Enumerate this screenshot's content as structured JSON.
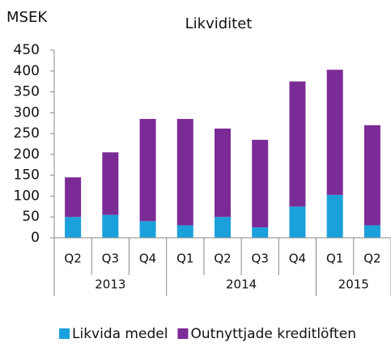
{
  "chart_data": {
    "type": "stacked_bar",
    "title": "Likviditet",
    "y_label": "MSEK",
    "groups": [
      {
        "label": "2013",
        "categories": [
          "Q2",
          "Q3",
          "Q4"
        ]
      },
      {
        "label": "2014",
        "categories": [
          "Q1",
          "Q2",
          "Q3",
          "Q4"
        ]
      },
      {
        "label": "2015",
        "categories": [
          "Q1",
          "Q2"
        ]
      }
    ],
    "series": [
      {
        "name": "Likvida medel",
        "color": "#1aa1db",
        "values": [
          50,
          55,
          40,
          30,
          50,
          25,
          75,
          103,
          30
        ]
      },
      {
        "name": "Outnyttjade kreditlöften",
        "color": "#7b2b96",
        "values": [
          95,
          150,
          245,
          255,
          212,
          210,
          300,
          300,
          240
        ]
      }
    ],
    "ylim": [
      0,
      450
    ],
    "yticks": [
      0,
      50,
      100,
      150,
      200,
      250,
      300,
      350,
      400,
      450
    ],
    "grid": false,
    "legend": "bottom"
  }
}
